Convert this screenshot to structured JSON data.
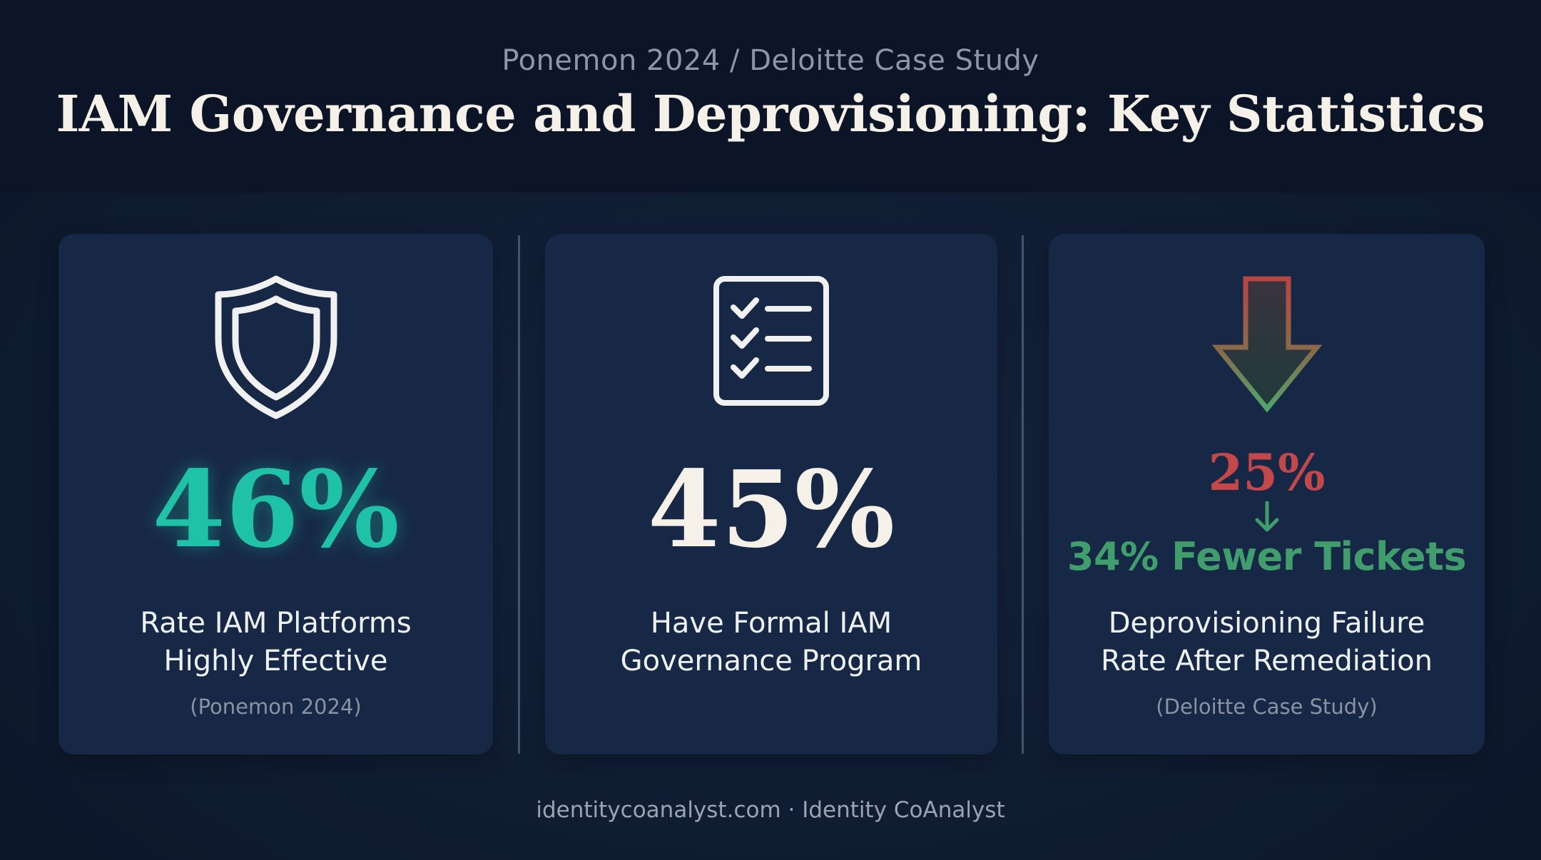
{
  "header": {
    "source_line": "Ponemon 2024 / Deloitte Case Study",
    "title": "IAM Governance and Deprovisioning: Key Statistics"
  },
  "cards": [
    {
      "icon": "shield-icon",
      "stat": "46%",
      "label_lines": [
        "Rate IAM Platforms",
        "Highly Effective"
      ],
      "source": "(Ponemon 2024)",
      "stat_color": "#1fc2a7"
    },
    {
      "icon": "checklist-icon",
      "stat": "45%",
      "label_lines": [
        "Have Formal IAM",
        "Governance Program"
      ],
      "source": "",
      "stat_color": "#f5f1e8"
    },
    {
      "icon": "down-arrow-icon",
      "stat_before": "25%",
      "stat_after": "34% Fewer Tickets",
      "label_lines": [
        "Deprovisioning Failure",
        "Rate After Remediation"
      ],
      "source": "(Deloitte Case Study)",
      "before_color": "#c4474a",
      "after_color": "#3f9e6b"
    }
  ],
  "footer": {
    "text": "identitycoanalyst.com · Identity CoAnalyst"
  },
  "colors": {
    "background": "#101c31",
    "card": "#172846",
    "accent_teal": "#1fc2a7",
    "accent_red": "#c4474a",
    "accent_green": "#3f9e6b"
  }
}
